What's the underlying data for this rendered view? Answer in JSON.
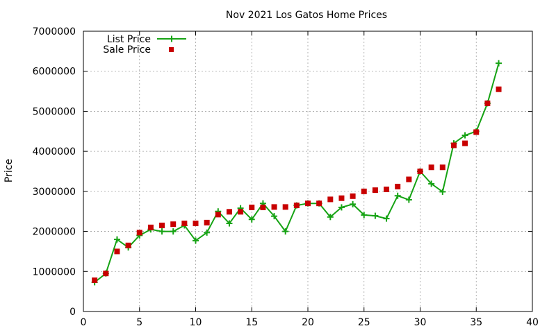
{
  "chart_data": {
    "type": "line",
    "title": "Nov 2021 Los Gatos Home Prices",
    "xlabel": "",
    "ylabel": "Price",
    "xlim": [
      0,
      40
    ],
    "ylim": [
      0,
      7000000
    ],
    "x_ticks": [
      0,
      5,
      10,
      15,
      20,
      25,
      30,
      35,
      40
    ],
    "y_ticks": [
      0,
      1000000,
      2000000,
      3000000,
      4000000,
      5000000,
      6000000,
      7000000
    ],
    "grid": true,
    "legend_position": "top-left",
    "series": [
      {
        "name": "List Price",
        "style": "line-with-plus",
        "color": "#16a314",
        "x": [
          1,
          2,
          3,
          4,
          5,
          6,
          7,
          8,
          9,
          10,
          11,
          12,
          13,
          14,
          15,
          16,
          17,
          18,
          19,
          20,
          21,
          22,
          23,
          24,
          25,
          26,
          27,
          28,
          29,
          30,
          31,
          32,
          33,
          34,
          35,
          36,
          37
        ],
        "y": [
          730000,
          950000,
          1800000,
          1600000,
          1900000,
          2050000,
          2000000,
          2000000,
          2150000,
          1770000,
          1970000,
          2500000,
          2200000,
          2580000,
          2300000,
          2700000,
          2380000,
          2000000,
          2650000,
          2700000,
          2700000,
          2360000,
          2600000,
          2680000,
          2410000,
          2390000,
          2320000,
          2890000,
          2790000,
          3500000,
          3190000,
          2990000,
          4200000,
          4400000,
          4500000,
          5200000,
          6200000
        ]
      },
      {
        "name": "Sale Price",
        "style": "square-markers",
        "color": "#c80000",
        "x": [
          1,
          2,
          3,
          4,
          5,
          6,
          7,
          8,
          9,
          10,
          11,
          12,
          13,
          14,
          15,
          16,
          17,
          18,
          19,
          20,
          21,
          22,
          23,
          24,
          25,
          26,
          27,
          28,
          29,
          30,
          31,
          32,
          33,
          34,
          35,
          36,
          37
        ],
        "y": [
          780000,
          950000,
          1500000,
          1650000,
          1970000,
          2100000,
          2150000,
          2180000,
          2200000,
          2200000,
          2220000,
          2420000,
          2490000,
          2490000,
          2600000,
          2600000,
          2610000,
          2610000,
          2650000,
          2700000,
          2700000,
          2800000,
          2830000,
          2880000,
          3000000,
          3030000,
          3050000,
          3120000,
          3300000,
          3500000,
          3600000,
          3600000,
          4150000,
          4200000,
          4480000,
          5200000,
          5550000
        ]
      }
    ]
  }
}
